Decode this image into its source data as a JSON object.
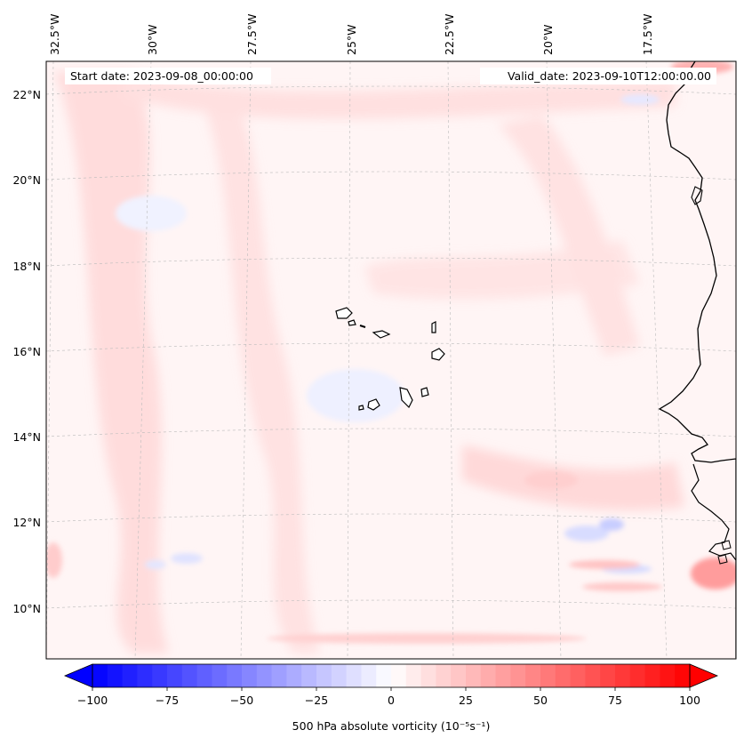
{
  "map": {
    "start_label": "Start date: 2023-09-08_00:00:00",
    "valid_label": "Valid_date: 2023-09-10T12:00:00.00",
    "lon_labels": [
      "32.5°W",
      "30°W",
      "27.5°W",
      "25°W",
      "22.5°W",
      "20°W",
      "17.5°W"
    ],
    "lat_labels": [
      "22°N",
      "20°N",
      "18°N",
      "16°N",
      "14°N",
      "12°N",
      "10°N"
    ],
    "field": "500 hPa absolute vorticity",
    "colors": {
      "negative": "#0000ff",
      "zero": "#ffffff",
      "positive": "#ff0000",
      "coastline": "#000000",
      "gridline": "#bbbbbb"
    }
  },
  "colorbar": {
    "label": "500 hPa absolute vorticity (10⁻⁵s⁻¹)",
    "range": [
      -100,
      100
    ],
    "ticks": [
      "−100",
      "−75",
      "−50",
      "−25",
      "0",
      "25",
      "50",
      "75",
      "100"
    ],
    "tick_values": [
      -100,
      -75,
      -50,
      -25,
      0,
      25,
      50,
      75,
      100
    ],
    "levels": 40,
    "extend": "both"
  }
}
